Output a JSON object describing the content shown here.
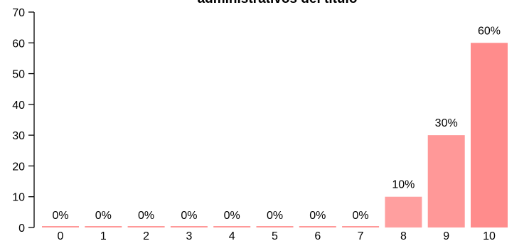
{
  "chart_data": {
    "type": "bar",
    "title": "administrativos del título",
    "xlabel": "",
    "ylabel": "",
    "categories": [
      "0",
      "1",
      "2",
      "3",
      "4",
      "5",
      "6",
      "7",
      "8",
      "9",
      "10"
    ],
    "values": [
      0,
      0,
      0,
      0,
      0,
      0,
      0,
      0,
      10,
      30,
      60
    ],
    "data_labels": [
      "0%",
      "0%",
      "0%",
      "0%",
      "0%",
      "0%",
      "0%",
      "0%",
      "10%",
      "30%",
      "60%"
    ],
    "ylim": [
      0,
      70
    ],
    "yticks": [
      0,
      10,
      20,
      30,
      40,
      50,
      60,
      70
    ],
    "grid": false,
    "bar_colors": [
      "#ff9999",
      "#ff9999",
      "#ff9999",
      "#ff9999",
      "#ff9999",
      "#ff9999",
      "#ff9999",
      "#ff9999",
      "#ff9f9f",
      "#ff9898",
      "#ff8c8c"
    ]
  }
}
